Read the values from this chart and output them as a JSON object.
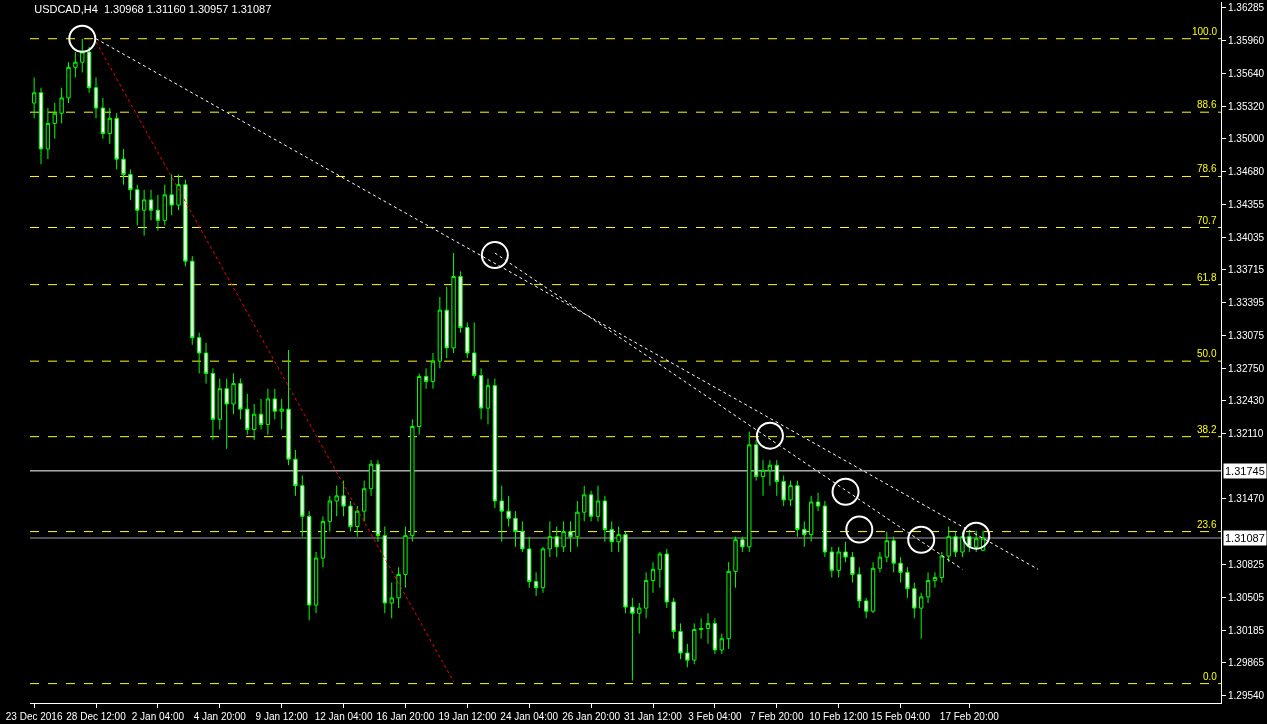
{
  "chart_data": {
    "type": "candlestick",
    "title": "USDCAD,H4  1.30968 1.31160 1.30957 1.31087",
    "categories": [
      "23 Dec 2016",
      null,
      null,
      null,
      null,
      null,
      null,
      null,
      null,
      "28 Dec 12:00",
      null,
      null,
      null,
      null,
      null,
      null,
      null,
      null,
      "2 Jan 04:00",
      null,
      null,
      null,
      null,
      null,
      null,
      null,
      null,
      "4 Jan 20:00",
      null,
      null,
      null,
      null,
      null,
      null,
      null,
      null,
      "9 Jan 12:00",
      null,
      null,
      null,
      null,
      null,
      null,
      null,
      null,
      "12 Jan 04:00",
      null,
      null,
      null,
      null,
      null,
      null,
      null,
      null,
      "16 Jan 20:00",
      null,
      null,
      null,
      null,
      null,
      null,
      null,
      null,
      "19 Jan 12:00",
      null,
      null,
      null,
      null,
      null,
      null,
      null,
      null,
      "24 Jan 04:00",
      null,
      null,
      null,
      null,
      null,
      null,
      null,
      null,
      "26 Jan 20:00",
      null,
      null,
      null,
      null,
      null,
      null,
      null,
      null,
      "31 Jan 12:00",
      null,
      null,
      null,
      null,
      null,
      null,
      null,
      null,
      "3 Feb 04:00",
      null,
      null,
      null,
      null,
      null,
      null,
      null,
      null,
      "7 Feb 20:00",
      null,
      null,
      null,
      null,
      null,
      null,
      null,
      null,
      "10 Feb 12:00",
      null,
      null,
      null,
      null,
      null,
      null,
      null,
      null,
      "15 Feb 04:00",
      null,
      null,
      null,
      null,
      null,
      null,
      null,
      null,
      null,
      "17 Feb 20:00",
      null,
      null,
      null,
      null,
      null,
      null,
      null,
      null,
      null,
      null,
      null,
      null,
      null,
      null,
      null,
      null,
      null,
      null,
      null,
      null,
      null,
      null,
      null,
      null,
      null,
      null,
      null,
      null,
      null,
      null,
      null,
      null,
      null,
      null,
      null,
      null
    ],
    "series": [
      {
        "color": "#00ff00",
        "ohlc": [
          [
            1.3535,
            1.356,
            1.352,
            1.3545
          ],
          [
            1.3545,
            1.355,
            1.3475,
            1.349
          ],
          [
            1.349,
            1.353,
            1.348,
            1.3515
          ],
          [
            1.3515,
            1.3535,
            1.35,
            1.3525
          ],
          [
            1.3525,
            1.355,
            1.3515,
            1.354
          ],
          [
            1.354,
            1.3575,
            1.3535,
            1.357
          ],
          [
            1.357,
            1.3585,
            1.356,
            1.3575
          ],
          [
            1.3575,
            1.3598,
            1.3565,
            1.3585
          ],
          [
            1.3585,
            1.359,
            1.3545,
            1.355
          ],
          [
            1.355,
            1.356,
            1.352,
            1.353
          ],
          [
            1.353,
            1.354,
            1.35,
            1.3505
          ],
          [
            1.3505,
            1.353,
            1.3495,
            1.352
          ],
          [
            1.352,
            1.3525,
            1.347,
            1.348
          ],
          [
            1.348,
            1.349,
            1.3455,
            1.3465
          ],
          [
            1.3465,
            1.347,
            1.344,
            1.345
          ],
          [
            1.345,
            1.3455,
            1.3415,
            1.343
          ],
          [
            1.343,
            1.345,
            1.3405,
            1.344
          ],
          [
            1.344,
            1.345,
            1.342,
            1.343
          ],
          [
            1.343,
            1.3445,
            1.341,
            1.342
          ],
          [
            1.342,
            1.3455,
            1.3415,
            1.3445
          ],
          [
            1.3445,
            1.3465,
            1.3425,
            1.3435
          ],
          [
            1.3435,
            1.3465,
            1.343,
            1.3455
          ],
          [
            1.3455,
            1.346,
            1.3375,
            1.338
          ],
          [
            1.338,
            1.3385,
            1.3298,
            1.3305
          ],
          [
            1.3305,
            1.331,
            1.327,
            1.329
          ],
          [
            1.329,
            1.33,
            1.326,
            1.327
          ],
          [
            1.327,
            1.3275,
            1.3205,
            1.3225
          ],
          [
            1.3225,
            1.3265,
            1.3215,
            1.3255
          ],
          [
            1.3255,
            1.3265,
            1.3196,
            1.324
          ],
          [
            1.324,
            1.327,
            1.323,
            1.326
          ],
          [
            1.326,
            1.3265,
            1.3225,
            1.3235
          ],
          [
            1.3235,
            1.325,
            1.321,
            1.3215
          ],
          [
            1.3215,
            1.324,
            1.3205,
            1.323
          ],
          [
            1.323,
            1.3245,
            1.3215,
            1.322
          ],
          [
            1.322,
            1.3255,
            1.321,
            1.3245
          ],
          [
            1.3245,
            1.3255,
            1.3225,
            1.3233
          ],
          [
            1.3233,
            1.3245,
            1.3215,
            1.3235
          ],
          [
            1.3235,
            1.3293,
            1.318,
            1.3186
          ],
          [
            1.3186,
            1.3195,
            1.315,
            1.316
          ],
          [
            1.316,
            1.317,
            1.311,
            1.313
          ],
          [
            1.313,
            1.3135,
            1.3028,
            1.3043
          ],
          [
            1.3043,
            1.3095,
            1.3035,
            1.3089
          ],
          [
            1.3089,
            1.313,
            1.308,
            1.3125
          ],
          [
            1.3125,
            1.315,
            1.3115,
            1.3145
          ],
          [
            1.3145,
            1.316,
            1.313,
            1.315
          ],
          [
            1.315,
            1.3165,
            1.313,
            1.314
          ],
          [
            1.314,
            1.3145,
            1.3115,
            1.312
          ],
          [
            1.312,
            1.314,
            1.311,
            1.3135
          ],
          [
            1.3135,
            1.3165,
            1.3125,
            1.3157
          ],
          [
            1.3157,
            1.3185,
            1.315,
            1.3181
          ],
          [
            1.3181,
            1.3185,
            1.3105,
            1.3111
          ],
          [
            1.3111,
            1.312,
            1.3035,
            1.3045
          ],
          [
            1.3045,
            1.3065,
            1.303,
            1.305
          ],
          [
            1.305,
            1.308,
            1.304,
            1.3073
          ],
          [
            1.3073,
            1.312,
            1.306,
            1.3111
          ],
          [
            1.3111,
            1.3225,
            1.3105,
            1.3218
          ],
          [
            1.3218,
            1.327,
            1.321,
            1.3267
          ],
          [
            1.3267,
            1.3275,
            1.3255,
            1.3262
          ],
          [
            1.3262,
            1.329,
            1.3255,
            1.3282
          ],
          [
            1.3282,
            1.3345,
            1.3275,
            1.3332
          ],
          [
            1.3332,
            1.3355,
            1.3285,
            1.3295
          ],
          [
            1.3295,
            1.3388,
            1.329,
            1.3365
          ],
          [
            1.3365,
            1.337,
            1.331,
            1.3315
          ],
          [
            1.3315,
            1.332,
            1.3285,
            1.329
          ],
          [
            1.329,
            1.332,
            1.3265,
            1.3268
          ],
          [
            1.3268,
            1.3275,
            1.3225,
            1.3236
          ],
          [
            1.3236,
            1.3265,
            1.322,
            1.3258
          ],
          [
            1.3258,
            1.3265,
            1.3138,
            1.3145
          ],
          [
            1.3145,
            1.316,
            1.3105,
            1.3135
          ],
          [
            1.3135,
            1.315,
            1.312,
            1.3128
          ],
          [
            1.3128,
            1.3135,
            1.31,
            1.3115
          ],
          [
            1.3115,
            1.3125,
            1.3095,
            1.3098
          ],
          [
            1.3098,
            1.311,
            1.306,
            1.3066
          ],
          [
            1.3066,
            1.3075,
            1.3052,
            1.306
          ],
          [
            1.306,
            1.31,
            1.3055,
            1.3098
          ],
          [
            1.3098,
            1.3125,
            1.309,
            1.311
          ],
          [
            1.311,
            1.312,
            1.309,
            1.31
          ],
          [
            1.31,
            1.3125,
            1.3095,
            1.3115
          ],
          [
            1.3115,
            1.3125,
            1.3095,
            1.311
          ],
          [
            1.311,
            1.3145,
            1.31,
            1.3134
          ],
          [
            1.3134,
            1.316,
            1.3125,
            1.3151
          ],
          [
            1.3151,
            1.3155,
            1.3125,
            1.313
          ],
          [
            1.313,
            1.316,
            1.3125,
            1.3145
          ],
          [
            1.3145,
            1.315,
            1.3105,
            1.3117
          ],
          [
            1.3117,
            1.3125,
            1.3095,
            1.3105
          ],
          [
            1.3105,
            1.312,
            1.3095,
            1.3112
          ],
          [
            1.3112,
            1.3115,
            1.3035,
            1.3041
          ],
          [
            1.3041,
            1.305,
            1.2969,
            1.3035
          ],
          [
            1.3035,
            1.3045,
            1.3015,
            1.304
          ],
          [
            1.304,
            1.3075,
            1.303,
            1.3067
          ],
          [
            1.3067,
            1.3085,
            1.3055,
            1.3078
          ],
          [
            1.3078,
            1.3095,
            1.306,
            1.3093
          ],
          [
            1.3093,
            1.3098,
            1.304,
            1.3046
          ],
          [
            1.3046,
            1.305,
            1.301,
            1.3017
          ],
          [
            1.3017,
            1.3025,
            1.299,
            1.2996
          ],
          [
            1.2996,
            1.3005,
            1.2982,
            1.2989
          ],
          [
            1.2989,
            1.3025,
            1.2985,
            1.3019
          ],
          [
            1.3019,
            1.303,
            1.301,
            1.302
          ],
          [
            1.302,
            1.3035,
            1.3005,
            1.3025
          ],
          [
            1.3025,
            1.303,
            1.2995,
            1.2999
          ],
          [
            1.2999,
            1.3015,
            1.2995,
            1.301
          ],
          [
            1.301,
            1.3085,
            1.3,
            1.3076
          ],
          [
            1.3076,
            1.311,
            1.306,
            1.3107
          ],
          [
            1.3107,
            1.311,
            1.3095,
            1.31
          ],
          [
            1.31,
            1.3213,
            1.3095,
            1.32
          ],
          [
            1.32,
            1.3205,
            1.3165,
            1.3169
          ],
          [
            1.3169,
            1.3185,
            1.315,
            1.3175
          ],
          [
            1.3175,
            1.3185,
            1.316,
            1.318
          ],
          [
            1.318,
            1.3185,
            1.315,
            1.3164
          ],
          [
            1.3164,
            1.317,
            1.314,
            1.3146
          ],
          [
            1.3146,
            1.3165,
            1.314,
            1.316
          ],
          [
            1.316,
            1.3165,
            1.311,
            1.3117
          ],
          [
            1.3117,
            1.3125,
            1.31,
            1.3112
          ],
          [
            1.3112,
            1.315,
            1.3105,
            1.3144
          ],
          [
            1.3144,
            1.3153,
            1.3135,
            1.314
          ],
          [
            1.314,
            1.3145,
            1.309,
            1.3095
          ],
          [
            1.3095,
            1.31,
            1.307,
            1.3077
          ],
          [
            1.3077,
            1.31,
            1.307,
            1.3095
          ],
          [
            1.3095,
            1.3105,
            1.3085,
            1.309
          ],
          [
            1.309,
            1.3095,
            1.3065,
            1.3073
          ],
          [
            1.3073,
            1.308,
            1.304,
            1.3047
          ],
          [
            1.3047,
            1.305,
            1.303,
            1.3037
          ],
          [
            1.3037,
            1.3085,
            1.3035,
            1.3079
          ],
          [
            1.3079,
            1.3095,
            1.3075,
            1.309
          ],
          [
            1.309,
            1.3115,
            1.3085,
            1.3106
          ],
          [
            1.3106,
            1.311,
            1.3075,
            1.3084
          ],
          [
            1.3084,
            1.309,
            1.3065,
            1.3075
          ],
          [
            1.3075,
            1.308,
            1.305,
            1.3059
          ],
          [
            1.3059,
            1.3065,
            1.303,
            1.304
          ],
          [
            1.304,
            1.3055,
            1.301,
            1.3051
          ],
          [
            1.3051,
            1.3075,
            1.3045,
            1.3067
          ],
          [
            1.3067,
            1.3075,
            1.306,
            1.307
          ],
          [
            1.307,
            1.3095,
            1.3065,
            1.3091
          ],
          [
            1.3091,
            1.312,
            1.3085,
            1.311
          ],
          [
            1.311,
            1.3115,
            1.309,
            1.3095
          ],
          [
            1.3095,
            1.3115,
            1.309,
            1.311
          ],
          [
            1.311,
            1.3115,
            1.3095,
            1.31
          ],
          [
            1.31,
            1.3116,
            1.3095,
            1.3108
          ],
          [
            1.30968,
            1.3116,
            1.30957,
            1.31087
          ],
          null,
          null,
          null,
          null,
          null,
          null,
          null,
          null,
          null,
          null,
          null,
          null,
          null,
          null,
          null,
          null,
          null,
          null,
          null,
          null,
          null,
          null,
          null,
          null,
          null,
          null,
          null,
          null,
          null,
          null,
          null,
          null,
          null,
          null
        ]
      },
      {
        "type": "line",
        "color": "#ff0000",
        "line_style": "dotted",
        "values": [
          null,
          null,
          null,
          null,
          null,
          null,
          null,
          null,
          null,
          1.3595,
          null,
          null,
          null,
          null,
          null,
          null,
          null,
          null,
          null,
          null,
          null,
          null,
          null,
          null,
          null,
          null,
          null,
          null,
          null,
          null,
          null,
          null,
          null,
          null,
          null,
          null,
          null,
          null,
          null,
          null,
          null,
          null,
          null,
          null,
          null,
          null,
          null,
          null,
          null,
          null,
          null,
          null,
          null,
          null,
          null,
          null,
          null,
          null,
          null,
          null,
          null,
          1.2968,
          null,
          null,
          null,
          null,
          null,
          null,
          null,
          null,
          null,
          null,
          null,
          null,
          null,
          null,
          null,
          null,
          null,
          null,
          null,
          null,
          null,
          null,
          null,
          null,
          null,
          null,
          null,
          null,
          null,
          null,
          null,
          null,
          null,
          null,
          null,
          null,
          null,
          null,
          null,
          null,
          null,
          null,
          null,
          null,
          null,
          null,
          null,
          null,
          null,
          null,
          null,
          null,
          null,
          null,
          null,
          null,
          null,
          null,
          null,
          null,
          null,
          null,
          null,
          null,
          null,
          null,
          null,
          null,
          null,
          null,
          null,
          null,
          null,
          null,
          null,
          null,
          null,
          null,
          null,
          null,
          null,
          null,
          null,
          null,
          null,
          null,
          null,
          null,
          null,
          null,
          null,
          null,
          null,
          null,
          null,
          null,
          null,
          null,
          null,
          null,
          null,
          null,
          null,
          null,
          null,
          null,
          null,
          null,
          null,
          null,
          null
        ]
      },
      {
        "type": "line",
        "color": "#ffffff",
        "line_style": "dotted",
        "values": [
          null,
          null,
          null,
          null,
          null,
          null,
          null,
          null,
          null,
          1.3598,
          null,
          null,
          null,
          null,
          null,
          null,
          null,
          null,
          null,
          null,
          null,
          null,
          null,
          null,
          null,
          null,
          null,
          null,
          null,
          null,
          null,
          null,
          null,
          null,
          null,
          null,
          null,
          null,
          null,
          null,
          null,
          null,
          null,
          null,
          null,
          null,
          null,
          null,
          null,
          null,
          null,
          null,
          null,
          null,
          null,
          null,
          null,
          null,
          null,
          null,
          null,
          null,
          null,
          null,
          null,
          null,
          null,
          null,
          null,
          null,
          null,
          null,
          null,
          null,
          null,
          null,
          null,
          null,
          null,
          null,
          null,
          null,
          null,
          null,
          null,
          null,
          null,
          null,
          null,
          null,
          null,
          null,
          null,
          null,
          null,
          null,
          null,
          null,
          null,
          null,
          null,
          null,
          null,
          null,
          null,
          null,
          null,
          null,
          null,
          null,
          null,
          null,
          null,
          null,
          null,
          null,
          null,
          null,
          null,
          null,
          null,
          null,
          null,
          null,
          null,
          null,
          null,
          null,
          null,
          null,
          null,
          null,
          null,
          null,
          null,
          null,
          null,
          null,
          null,
          null,
          null,
          null,
          null,
          null,
          null,
          null,
          1.3078,
          null,
          null,
          null,
          null,
          null,
          null,
          null,
          null,
          null,
          null,
          null,
          null,
          null,
          null,
          null,
          null,
          null,
          null,
          null,
          null,
          null,
          null,
          null,
          null,
          null,
          null
        ]
      },
      {
        "type": "line",
        "color": "#ffffff",
        "line_style": "dotted",
        "values": [
          null,
          null,
          null,
          null,
          null,
          null,
          null,
          null,
          null,
          null,
          null,
          null,
          null,
          null,
          null,
          null,
          null,
          null,
          null,
          null,
          null,
          null,
          null,
          null,
          null,
          null,
          null,
          null,
          null,
          null,
          null,
          null,
          null,
          null,
          null,
          null,
          null,
          null,
          null,
          null,
          null,
          null,
          null,
          null,
          null,
          null,
          null,
          null,
          null,
          null,
          null,
          null,
          null,
          null,
          null,
          null,
          null,
          null,
          null,
          null,
          null,
          null,
          null,
          null,
          null,
          null,
          null,
          1.3388,
          null,
          null,
          null,
          null,
          null,
          null,
          null,
          null,
          null,
          null,
          null,
          null,
          null,
          null,
          null,
          null,
          null,
          null,
          null,
          null,
          null,
          null,
          null,
          null,
          null,
          null,
          null,
          null,
          null,
          null,
          null,
          null,
          null,
          null,
          null,
          null,
          null,
          null,
          null,
          null,
          null,
          null,
          null,
          null,
          null,
          null,
          null,
          null,
          null,
          null,
          null,
          null,
          null,
          null,
          null,
          null,
          null,
          null,
          null,
          null,
          null,
          null,
          null,
          null,
          null,
          null,
          null,
          1.3078,
          null,
          null,
          null,
          null,
          null,
          null,
          null,
          null,
          null,
          null,
          null,
          null,
          null,
          null,
          null,
          null,
          null,
          null,
          null,
          null,
          null,
          null,
          null,
          null,
          null,
          null,
          null,
          null,
          null,
          null,
          null,
          null,
          null,
          null,
          null,
          null,
          null
        ]
      },
      {
        "type": "scatter",
        "color": "#ffffff",
        "marker": "circle",
        "values": [
          null,
          null,
          null,
          null,
          null,
          null,
          null,
          1.3598,
          null,
          null,
          null,
          null,
          null,
          null,
          null,
          null,
          null,
          null,
          null,
          null,
          null,
          null,
          null,
          null,
          null,
          null,
          null,
          null,
          null,
          null,
          null,
          null,
          null,
          null,
          null,
          null,
          null,
          null,
          null,
          null,
          null,
          null,
          null,
          null,
          null,
          null,
          null,
          null,
          null,
          null,
          null,
          null,
          null,
          null,
          null,
          null,
          null,
          null,
          null,
          null,
          null,
          null,
          null,
          null,
          null,
          null,
          null,
          1.3386,
          null,
          null,
          null,
          null,
          null,
          null,
          null,
          null,
          null,
          null,
          null,
          null,
          null,
          null,
          null,
          null,
          null,
          null,
          null,
          null,
          null,
          null,
          null,
          null,
          null,
          null,
          null,
          null,
          null,
          null,
          null,
          null,
          null,
          null,
          null,
          null,
          null,
          null,
          null,
          1.3209,
          null,
          null,
          null,
          null,
          null,
          null,
          null,
          null,
          null,
          null,
          1.3154,
          null,
          1.3117,
          null,
          null,
          null,
          null,
          null,
          null,
          null,
          null,
          1.3107,
          null,
          null,
          null,
          null,
          null,
          null,
          null,
          1.3111,
          null,
          null,
          null,
          null,
          null,
          null,
          null,
          null,
          null,
          null,
          null,
          null,
          null,
          null,
          null,
          null,
          null,
          null,
          null,
          null,
          null,
          null,
          null,
          null,
          null,
          null,
          null,
          null,
          null,
          null,
          null,
          null,
          null,
          null,
          null
        ]
      }
    ],
    "ref_lines": [
      {
        "axis": "y",
        "value": 1.3598,
        "color": "#ffff00",
        "line_style": "dashed"
      },
      {
        "axis": "y",
        "value": 1.3526,
        "color": "#ffff00",
        "line_style": "dashed"
      },
      {
        "axis": "y",
        "value": 1.3463,
        "color": "#ffff00",
        "line_style": "dashed"
      },
      {
        "axis": "y",
        "value": 1.3413,
        "color": "#ffff00",
        "line_style": "dashed"
      },
      {
        "axis": "y",
        "value": 1.3357,
        "color": "#ffff00",
        "line_style": "dashed"
      },
      {
        "axis": "y",
        "value": 1.3282,
        "color": "#ffff00",
        "line_style": "dashed"
      },
      {
        "axis": "y",
        "value": 1.3208,
        "color": "#ffff00",
        "line_style": "dashed"
      },
      {
        "axis": "y",
        "value": 1.3115,
        "color": "#ffff00",
        "line_style": "dashed"
      },
      {
        "axis": "y",
        "value": 1.2966,
        "color": "#ffff00",
        "line_style": "dashed"
      },
      {
        "axis": "y",
        "value": 1.31745,
        "label": "1.31745",
        "color": "#ffffff",
        "line_style": "solid"
      },
      {
        "axis": "y",
        "value": 1.31087,
        "label": "1.31087",
        "color": "#a0a0a4",
        "line_style": "solid"
      }
    ],
    "annotations": [
      {
        "text": "100.0",
        "y": 1.3598
      },
      {
        "text": "88.6",
        "y": 1.3526
      },
      {
        "text": "78.6",
        "y": 1.3463
      },
      {
        "text": "70.7",
        "y": 1.3413
      },
      {
        "text": "61.8",
        "y": 1.3357
      },
      {
        "text": "50.0",
        "y": 1.3282
      },
      {
        "text": "38.2",
        "y": 1.3208
      },
      {
        "text": "23.6",
        "y": 1.3115
      },
      {
        "text": "0.0",
        "y": 1.2966
      }
    ],
    "ylim": [
      1.2947,
      1.3634
    ],
    "yticks": [
      {
        "value": 1.36285,
        "label": "1.36285"
      },
      {
        "value": 1.3596,
        "label": "1.35960"
      },
      {
        "value": 1.3564,
        "label": "1.35640"
      },
      {
        "value": 1.3532,
        "label": "1.35320"
      },
      {
        "value": 1.35,
        "label": "1.35000"
      },
      {
        "value": 1.3468,
        "label": "1.34680"
      },
      {
        "value": 1.34355,
        "label": "1.34355"
      },
      {
        "value": 1.34035,
        "label": "1.34035"
      },
      {
        "value": 1.33715,
        "label": "1.33715"
      },
      {
        "value": 1.33395,
        "label": "1.33395"
      },
      {
        "value": 1.33075,
        "label": "1.33075"
      },
      {
        "value": 1.3275,
        "label": "1.32750"
      },
      {
        "value": 1.3243,
        "label": "1.32430"
      },
      {
        "value": 1.3211,
        "label": "1.32110"
      },
      {
        "value": 1.3147,
        "label": "1.31470"
      },
      {
        "value": 1.30825,
        "label": "1.30825"
      },
      {
        "value": 1.30505,
        "label": "1.30505"
      },
      {
        "value": 1.30185,
        "label": "1.30185"
      },
      {
        "value": 1.29865,
        "label": "1.29865"
      },
      {
        "value": 1.2954,
        "label": "1.29540"
      }
    ],
    "grid": false
  }
}
